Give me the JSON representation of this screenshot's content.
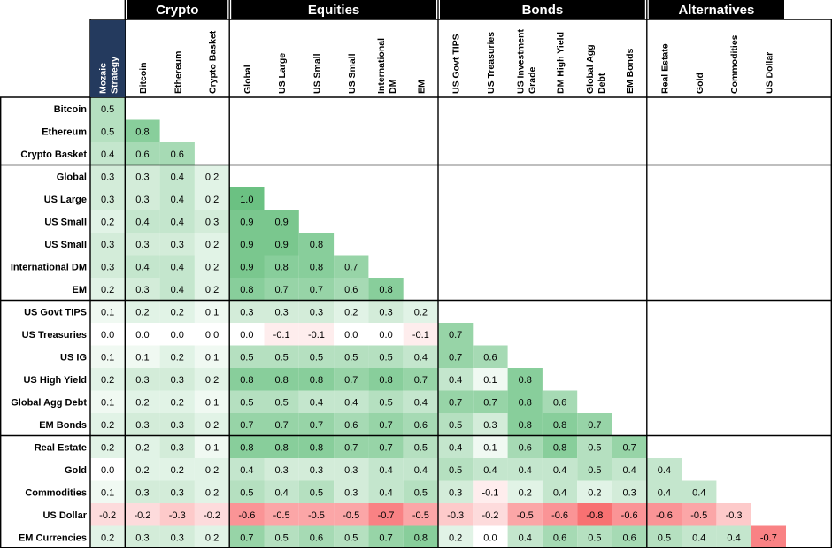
{
  "chart_data": {
    "type": "heatmap",
    "title": "",
    "colors": {
      "positive": "#63be7b",
      "negative": "#f8696b",
      "neutral": "#ffffff",
      "header_bg": "#000000",
      "highlight_bg": "#243a5e"
    },
    "column_groups": [
      {
        "name": "Crypto",
        "columns": [
          1,
          3
        ]
      },
      {
        "name": "Equities",
        "columns": [
          4,
          9
        ]
      },
      {
        "name": "Bonds",
        "columns": [
          10,
          15
        ]
      },
      {
        "name": "Alternatives",
        "columns": [
          16,
          19
        ]
      }
    ],
    "columns": [
      [
        "Mozaic",
        "Strategy"
      ],
      [
        "Bitcoin"
      ],
      [
        "Ethereum"
      ],
      [
        "Crypto Basket"
      ],
      [
        "Global"
      ],
      [
        "US Large"
      ],
      [
        "US Small"
      ],
      [
        "US Small"
      ],
      [
        "International",
        "DM"
      ],
      [
        "EM"
      ],
      [
        "US Govt TIPS"
      ],
      [
        "US Treasuries"
      ],
      [
        "US Investment",
        "Grade"
      ],
      [
        "DM High Yield"
      ],
      [
        "Global Agg",
        "Debt"
      ],
      [
        "EM Bonds"
      ],
      [
        "Real Estate"
      ],
      [
        "Gold"
      ],
      [
        "Commodities"
      ],
      [
        "US Dollar"
      ]
    ],
    "rows": [
      "Bitcoin",
      "Ethereum",
      "Crypto Basket",
      "Global",
      "US Large",
      "US Small",
      "US Small",
      "International DM",
      "EM",
      "US Govt TIPS",
      "US Treasuries",
      "US IG",
      "US High Yield",
      "Global Agg Debt",
      "EM Bonds",
      "Real Estate",
      "Gold",
      "Commodities",
      "US Dollar",
      "EM Currencies"
    ],
    "values": [
      [
        0.5
      ],
      [
        0.5,
        0.8
      ],
      [
        0.4,
        0.6,
        0.6
      ],
      [
        0.3,
        0.3,
        0.4,
        0.2
      ],
      [
        0.3,
        0.3,
        0.4,
        0.2,
        1.0
      ],
      [
        0.2,
        0.4,
        0.4,
        0.3,
        0.9,
        0.9
      ],
      [
        0.3,
        0.3,
        0.3,
        0.2,
        0.9,
        0.9,
        0.8
      ],
      [
        0.3,
        0.4,
        0.4,
        0.2,
        0.9,
        0.8,
        0.8,
        0.7
      ],
      [
        0.2,
        0.3,
        0.4,
        0.2,
        0.8,
        0.7,
        0.7,
        0.6,
        0.8
      ],
      [
        0.1,
        0.2,
        0.2,
        0.1,
        0.3,
        0.3,
        0.3,
        0.2,
        0.3,
        0.2
      ],
      [
        0.0,
        0.0,
        0.0,
        0.0,
        0.0,
        -0.1,
        -0.1,
        0.0,
        0.0,
        -0.1,
        0.7
      ],
      [
        0.1,
        0.1,
        0.2,
        0.1,
        0.5,
        0.5,
        0.5,
        0.5,
        0.5,
        0.4,
        0.7,
        0.6
      ],
      [
        0.2,
        0.3,
        0.3,
        0.2,
        0.8,
        0.8,
        0.8,
        0.7,
        0.8,
        0.7,
        0.4,
        0.1,
        0.8
      ],
      [
        0.1,
        0.2,
        0.2,
        0.1,
        0.5,
        0.5,
        0.4,
        0.4,
        0.5,
        0.4,
        0.7,
        0.7,
        0.8,
        0.6
      ],
      [
        0.2,
        0.3,
        0.3,
        0.2,
        0.7,
        0.7,
        0.7,
        0.6,
        0.7,
        0.6,
        0.5,
        0.3,
        0.8,
        0.8,
        0.7
      ],
      [
        0.2,
        0.2,
        0.3,
        0.1,
        0.8,
        0.8,
        0.8,
        0.7,
        0.7,
        0.5,
        0.4,
        0.1,
        0.6,
        0.8,
        0.5,
        0.7
      ],
      [
        0.0,
        0.2,
        0.2,
        0.2,
        0.4,
        0.3,
        0.3,
        0.3,
        0.4,
        0.4,
        0.5,
        0.4,
        0.4,
        0.4,
        0.5,
        0.4,
        0.4
      ],
      [
        0.1,
        0.3,
        0.3,
        0.2,
        0.5,
        0.4,
        0.5,
        0.3,
        0.4,
        0.5,
        0.3,
        -0.1,
        0.2,
        0.4,
        0.2,
        0.3,
        0.4,
        0.4
      ],
      [
        -0.2,
        -0.2,
        -0.3,
        -0.2,
        -0.6,
        -0.5,
        -0.5,
        -0.5,
        -0.7,
        -0.5,
        -0.3,
        -0.2,
        -0.5,
        -0.6,
        -0.8,
        -0.6,
        -0.6,
        -0.5,
        -0.3
      ],
      [
        0.2,
        0.3,
        0.3,
        0.2,
        0.7,
        0.5,
        0.6,
        0.5,
        0.7,
        0.8,
        0.2,
        0.0,
        0.4,
        0.6,
        0.5,
        0.6,
        0.5,
        0.4,
        0.4,
        -0.7
      ]
    ]
  }
}
